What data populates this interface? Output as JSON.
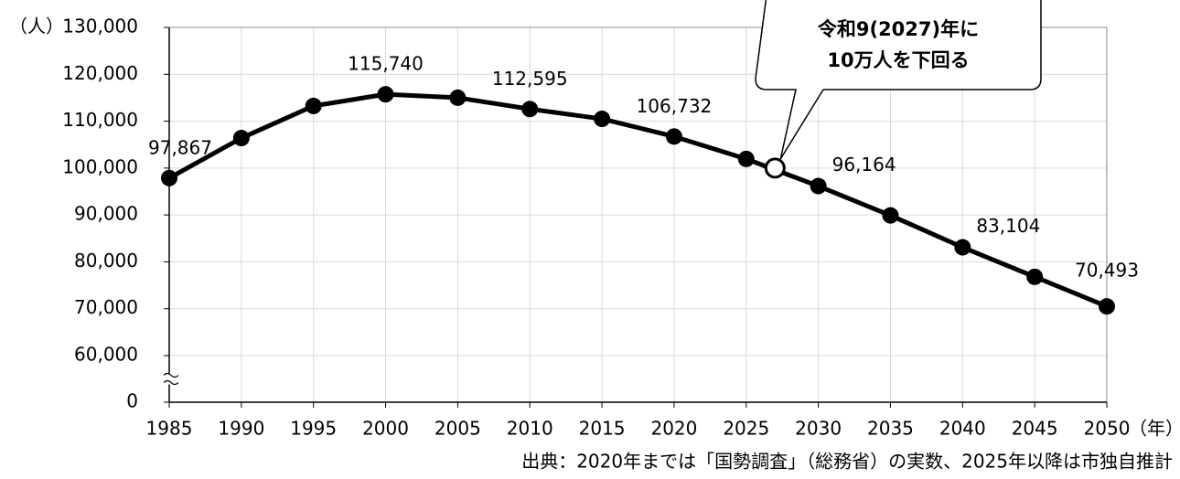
{
  "chart_data": {
    "type": "line",
    "y_unit": "（人）",
    "x_unit": "（年）",
    "source": "出典：2020年までは「国勢調査」（総務省）の実数、2025年以降は市独自推計",
    "x": [
      1985,
      1990,
      1995,
      2000,
      2005,
      2010,
      2015,
      2020,
      2025,
      2030,
      2035,
      2040,
      2045,
      2050
    ],
    "series": [
      {
        "color": "#000000",
        "values": [
          97867,
          106400,
          113250,
          115740,
          115000,
          112595,
          110500,
          106732,
          101950,
          96164,
          89900,
          83104,
          76800,
          70493
        ],
        "value_labels": [
          "97,867",
          null,
          null,
          "115,740",
          null,
          "112,595",
          null,
          "106,732",
          null,
          "96,164",
          null,
          "83,104",
          null,
          "70,493"
        ]
      }
    ],
    "annotation": {
      "x": 2027,
      "y": 100000,
      "text": [
        "令和9(2027)年に",
        "10万人を下回る"
      ]
    },
    "xlim": [
      1985,
      2050
    ],
    "xticks": [
      1985,
      1990,
      1995,
      2000,
      2005,
      2010,
      2015,
      2020,
      2025,
      2030,
      2035,
      2040,
      2045,
      2050
    ],
    "ylim": [
      0,
      130000
    ],
    "y_break": [
      0,
      60000
    ],
    "yticks": [
      0,
      {
        "value": 60000,
        "label": "60,000"
      },
      {
        "value": 70000,
        "label": "70,000"
      },
      {
        "value": 80000,
        "label": "80,000"
      },
      {
        "value": 90000,
        "label": "90,000"
      },
      {
        "value": 100000,
        "label": "100,000"
      },
      {
        "value": 110000,
        "label": "110,000"
      },
      {
        "value": 120000,
        "label": "120,000"
      },
      {
        "value": 130000,
        "label": "130,000"
      }
    ],
    "grid": true
  }
}
